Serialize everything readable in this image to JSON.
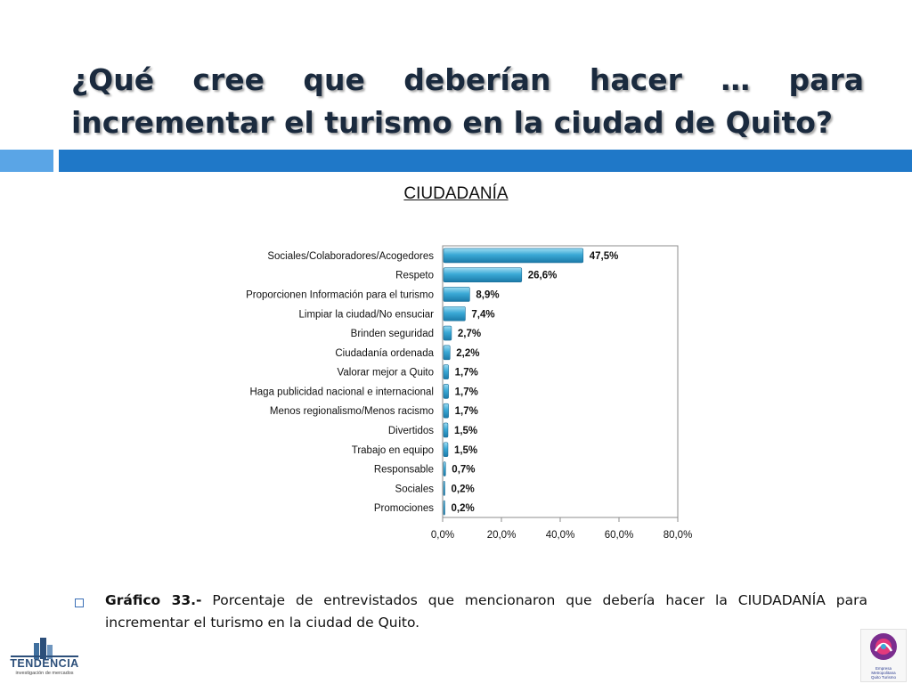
{
  "slide": {
    "title": "¿Qué cree que deberían hacer … para incrementar el turismo en la ciudad de Quito?",
    "caption_label": "Gráfico 33.-",
    "caption_text": "Porcentaje de entrevistados que mencionaron que debería hacer la CIUDADANÍA para incrementar el turismo en la ciudad de Quito.",
    "accent_color": "#1f78c8",
    "accent_light": "#5aa5e6"
  },
  "logos": {
    "left_brand": "TENDENCIA",
    "left_tagline": "investigación de mercados",
    "right_text": [
      "Empresa",
      "Metropolitana",
      "Quito Turismo"
    ]
  },
  "chart_data": {
    "type": "bar",
    "orientation": "horizontal",
    "title": "CIUDADANÍA",
    "categories": [
      "Sociales/Colaboradores/Acogedores",
      "Respeto",
      "Proporcionen Información para el turismo",
      "Limpiar la ciudad/No ensuciar",
      "Brinden seguridad",
      "Ciudadanía ordenada",
      "Valorar mejor a Quito",
      "Haga publicidad nacional e internacional",
      "Menos regionalismo/Menos racismo",
      "Divertidos",
      "Trabajo en equipo",
      "Responsable",
      "Sociales",
      "Promociones"
    ],
    "values": [
      47.5,
      26.6,
      8.9,
      7.4,
      2.7,
      2.2,
      1.7,
      1.7,
      1.7,
      1.5,
      1.5,
      0.7,
      0.2,
      0.2
    ],
    "value_labels": [
      "47,5%",
      "26,6%",
      "8,9%",
      "7,4%",
      "2,7%",
      "2,2%",
      "1,7%",
      "1,7%",
      "1,7%",
      "1,5%",
      "1,5%",
      "0,7%",
      "0,2%",
      "0,2%"
    ],
    "xlim": [
      0,
      80
    ],
    "xticks": [
      0,
      20,
      40,
      60,
      80
    ],
    "xtick_labels": [
      "0,0%",
      "20,0%",
      "40,0%",
      "60,0%",
      "80,0%"
    ],
    "bar_color": "#3aa9d6",
    "grid": false,
    "legend": "none"
  }
}
